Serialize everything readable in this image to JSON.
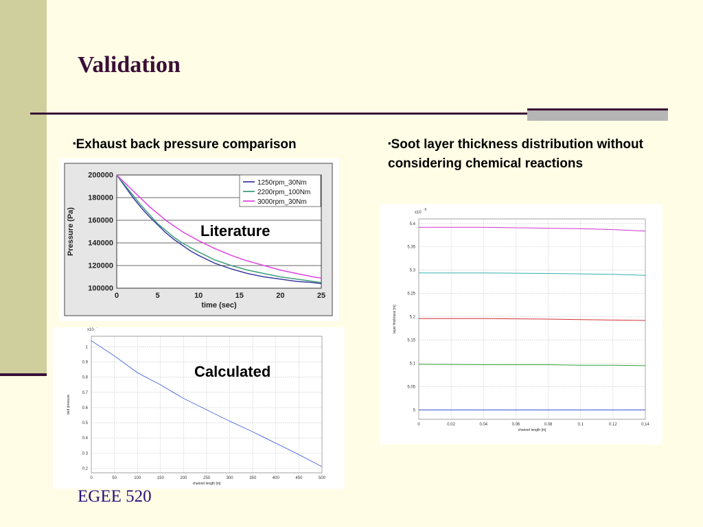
{
  "slide": {
    "title": "Validation",
    "bullet_left": "Exhaust back pressure comparison",
    "bullet_right": "Soot layer thickness distribution without considering chemical reactions",
    "label_literature": "Literature",
    "label_calculated": "Calculated",
    "footer": "EGEE 520",
    "bullet_marker": "▪",
    "colors": {
      "title": "#3a0f36",
      "band": "#cfcf9e",
      "footer": "#2a0d7a"
    }
  },
  "chart_data": [
    {
      "type": "line",
      "xlabel": "time (sec)",
      "ylabel": "Pressure (Pa)",
      "xlim": [
        0,
        25
      ],
      "ylim": [
        100000,
        200000
      ],
      "xticks": [
        0,
        5,
        10,
        15,
        20,
        25
      ],
      "yticks": [
        100000,
        120000,
        140000,
        160000,
        180000,
        200000
      ],
      "grid": "horizontal",
      "legend": "top-right",
      "series": [
        {
          "name": "1250rpm_30Nm",
          "color": "#3a3a9e",
          "x": [
            0,
            1,
            2,
            3,
            4,
            5,
            6,
            7,
            8,
            9,
            10,
            12,
            14,
            16,
            18,
            20,
            22,
            24,
            25
          ],
          "y": [
            200000,
            190000,
            180000,
            171000,
            163000,
            156000,
            149000,
            143000,
            138000,
            133000,
            129000,
            122000,
            117000,
            113000,
            110000,
            108000,
            106000,
            105000,
            104000
          ]
        },
        {
          "name": "2200rpm_100Nm",
          "color": "#3c9c7a",
          "x": [
            0,
            1,
            2,
            3,
            4,
            5,
            6,
            7,
            8,
            9,
            10,
            12,
            14,
            16,
            18,
            20,
            22,
            24,
            25
          ],
          "y": [
            200000,
            191000,
            182000,
            173000,
            165000,
            157000,
            151000,
            145000,
            140000,
            136000,
            132000,
            125000,
            120000,
            116000,
            113000,
            110000,
            108000,
            106000,
            105000
          ]
        },
        {
          "name": "3000rpm_30Nm",
          "color": "#e040e0",
          "x": [
            0,
            1,
            2,
            3,
            4,
            5,
            6,
            7,
            8,
            9,
            10,
            12,
            14,
            16,
            18,
            20,
            22,
            24,
            25
          ],
          "y": [
            200000,
            193000,
            186000,
            179000,
            172000,
            166000,
            160000,
            155000,
            150000,
            146000,
            142000,
            135000,
            129000,
            124000,
            120000,
            116000,
            113000,
            110000,
            109000
          ]
        }
      ]
    },
    {
      "type": "line",
      "xlabel": "channel length [m]",
      "ylabel": "bed pressure",
      "exponent_label": "x10",
      "exponent_power": "4",
      "xlim": [
        0,
        500
      ],
      "ylim": [
        0.17,
        1.07
      ],
      "xticks": [
        0,
        50,
        100,
        150,
        200,
        250,
        300,
        350,
        400,
        450,
        500
      ],
      "yticks": [
        0.2,
        0.3,
        0.4,
        0.5,
        0.6,
        0.7,
        0.8,
        0.9,
        1
      ],
      "grid": "both",
      "series": [
        {
          "color": "#3050d0",
          "x": [
            0,
            50,
            100,
            150,
            200,
            250,
            300,
            350,
            400,
            450,
            500
          ],
          "y": [
            1.04,
            0.94,
            0.83,
            0.75,
            0.66,
            0.585,
            0.51,
            0.44,
            0.365,
            0.29,
            0.21
          ]
        }
      ]
    },
    {
      "type": "line",
      "xlabel": "channel length [m]",
      "ylabel": "layer thickness [m]",
      "exponent_label": "x10",
      "exponent_power": "-5",
      "xlim": [
        0,
        0.14
      ],
      "ylim": [
        4.98,
        5.41
      ],
      "xticks": [
        0,
        0.02,
        0.04,
        0.06,
        0.08,
        0.1,
        0.12,
        0.14
      ],
      "yticks": [
        5,
        5.05,
        5.1,
        5.15,
        5.2,
        5.25,
        5.3,
        5.35,
        5.4
      ],
      "grid": "both",
      "series": [
        {
          "color": "#d030d0",
          "x": [
            0,
            0.04,
            0.08,
            0.1,
            0.12,
            0.14
          ],
          "y": [
            5.392,
            5.392,
            5.39,
            5.389,
            5.387,
            5.384
          ]
        },
        {
          "color": "#30b0b0",
          "x": [
            0,
            0.04,
            0.08,
            0.1,
            0.12,
            0.14
          ],
          "y": [
            5.294,
            5.294,
            5.293,
            5.292,
            5.291,
            5.289
          ]
        },
        {
          "color": "#d03030",
          "x": [
            0,
            0.04,
            0.08,
            0.1,
            0.12,
            0.14
          ],
          "y": [
            5.196,
            5.196,
            5.195,
            5.194,
            5.193,
            5.192
          ]
        },
        {
          "color": "#30a030",
          "x": [
            0,
            0.04,
            0.08,
            0.1,
            0.12,
            0.14
          ],
          "y": [
            5.098,
            5.097,
            5.097,
            5.096,
            5.096,
            5.095
          ]
        },
        {
          "color": "#3050d0",
          "x": [
            0,
            0.04,
            0.08,
            0.1,
            0.12,
            0.14
          ],
          "y": [
            5.0,
            5.0,
            5.0,
            5.0,
            5.0,
            5.0
          ]
        }
      ]
    }
  ]
}
